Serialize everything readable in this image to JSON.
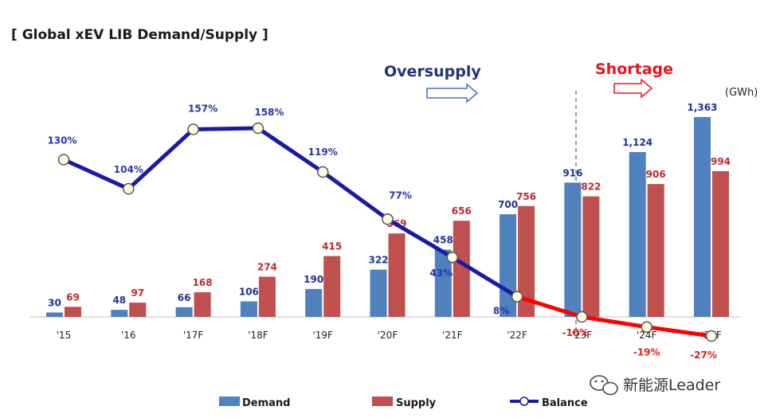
{
  "title": "[ Global xEV LIB Demand/Supply ]",
  "unit": "(GWh)",
  "annotations": {
    "oversupply": "Oversupply",
    "shortage": "Shortage"
  },
  "watermark": "新能源Leader",
  "chart_data": {
    "type": "bar",
    "categories": [
      "'15",
      "'16",
      "'17F",
      "'18F",
      "'19F",
      "'20F",
      "'21F",
      "'22F",
      "'23F",
      "'24F",
      "'25F"
    ],
    "series": [
      {
        "name": "Demand",
        "type": "bar",
        "color": "#4f81bd",
        "values": [
          30,
          48,
          66,
          106,
          190,
          322,
          458,
          700,
          916,
          1124,
          1363
        ],
        "labels": [
          "30",
          "48",
          "66",
          "106",
          "190",
          "322",
          "458",
          "700",
          "916",
          "1,124",
          "1,363"
        ]
      },
      {
        "name": "Supply",
        "type": "bar",
        "color": "#c0504d",
        "values": [
          69,
          97,
          168,
          274,
          415,
          569,
          656,
          756,
          822,
          906,
          994
        ],
        "labels": [
          "69",
          "97",
          "168",
          "274",
          "415",
          "569",
          "656",
          "756",
          "822",
          "906",
          "994"
        ]
      },
      {
        "name": "Balance",
        "type": "line",
        "color": "#1a1aa8",
        "negative_color": "#ff0000",
        "unit": "%",
        "values": [
          130,
          104,
          157,
          158,
          119,
          77,
          43,
          8,
          -10,
          -19,
          -27
        ],
        "labels": [
          "130%",
          "104%",
          "157%",
          "158%",
          "119%",
          "77%",
          "43%",
          "8%",
          "-10%",
          "-19%",
          "-27%"
        ]
      }
    ],
    "ylim": [
      0,
      1500
    ],
    "balance_ylim": [
      -30,
      160
    ],
    "grid": false,
    "legend_position": "bottom"
  }
}
